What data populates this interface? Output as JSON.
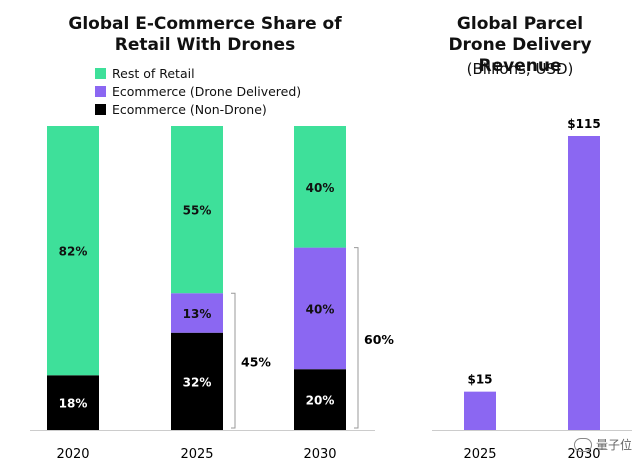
{
  "chart_data": [
    {
      "type": "bar",
      "stacked": true,
      "title": "Global E-Commerce Share of Retail With Drones",
      "categories": [
        "2020",
        "2025",
        "2030"
      ],
      "series": [
        {
          "name": "Ecommerce (Non-Drone)",
          "color": "#000000",
          "values": [
            18,
            32,
            20
          ],
          "labels": [
            "18%",
            "32%",
            "20%"
          ]
        },
        {
          "name": "Ecommerce (Drone Delivered)",
          "color": "#8b67f2",
          "values": [
            0,
            13,
            40
          ],
          "labels": [
            "",
            "13%",
            "40%"
          ]
        },
        {
          "name": "Rest of Retail",
          "color": "#3ee09a",
          "values": [
            82,
            55,
            40
          ],
          "labels": [
            "82%",
            "55%",
            "40%"
          ]
        }
      ],
      "legend_order": [
        "Rest of Retail",
        "Ecommerce (Drone Delivered)",
        "Ecommerce (Non-Drone)"
      ],
      "legend_position": "top-left",
      "brackets": [
        {
          "category": "2025",
          "label": "45%",
          "value": 45
        },
        {
          "category": "2030",
          "label": "60%",
          "value": 60
        }
      ],
      "ylim": [
        0,
        100
      ]
    },
    {
      "type": "bar",
      "title": "Global Parcel Drone Delivery Revenue",
      "subtitle": "(Billions, USD)",
      "categories": [
        "2025",
        "2030"
      ],
      "values": [
        15,
        115
      ],
      "labels": [
        "$15",
        "$115"
      ],
      "color": "#8b67f2",
      "ylim": [
        0,
        115
      ]
    }
  ],
  "watermark": "量子位"
}
